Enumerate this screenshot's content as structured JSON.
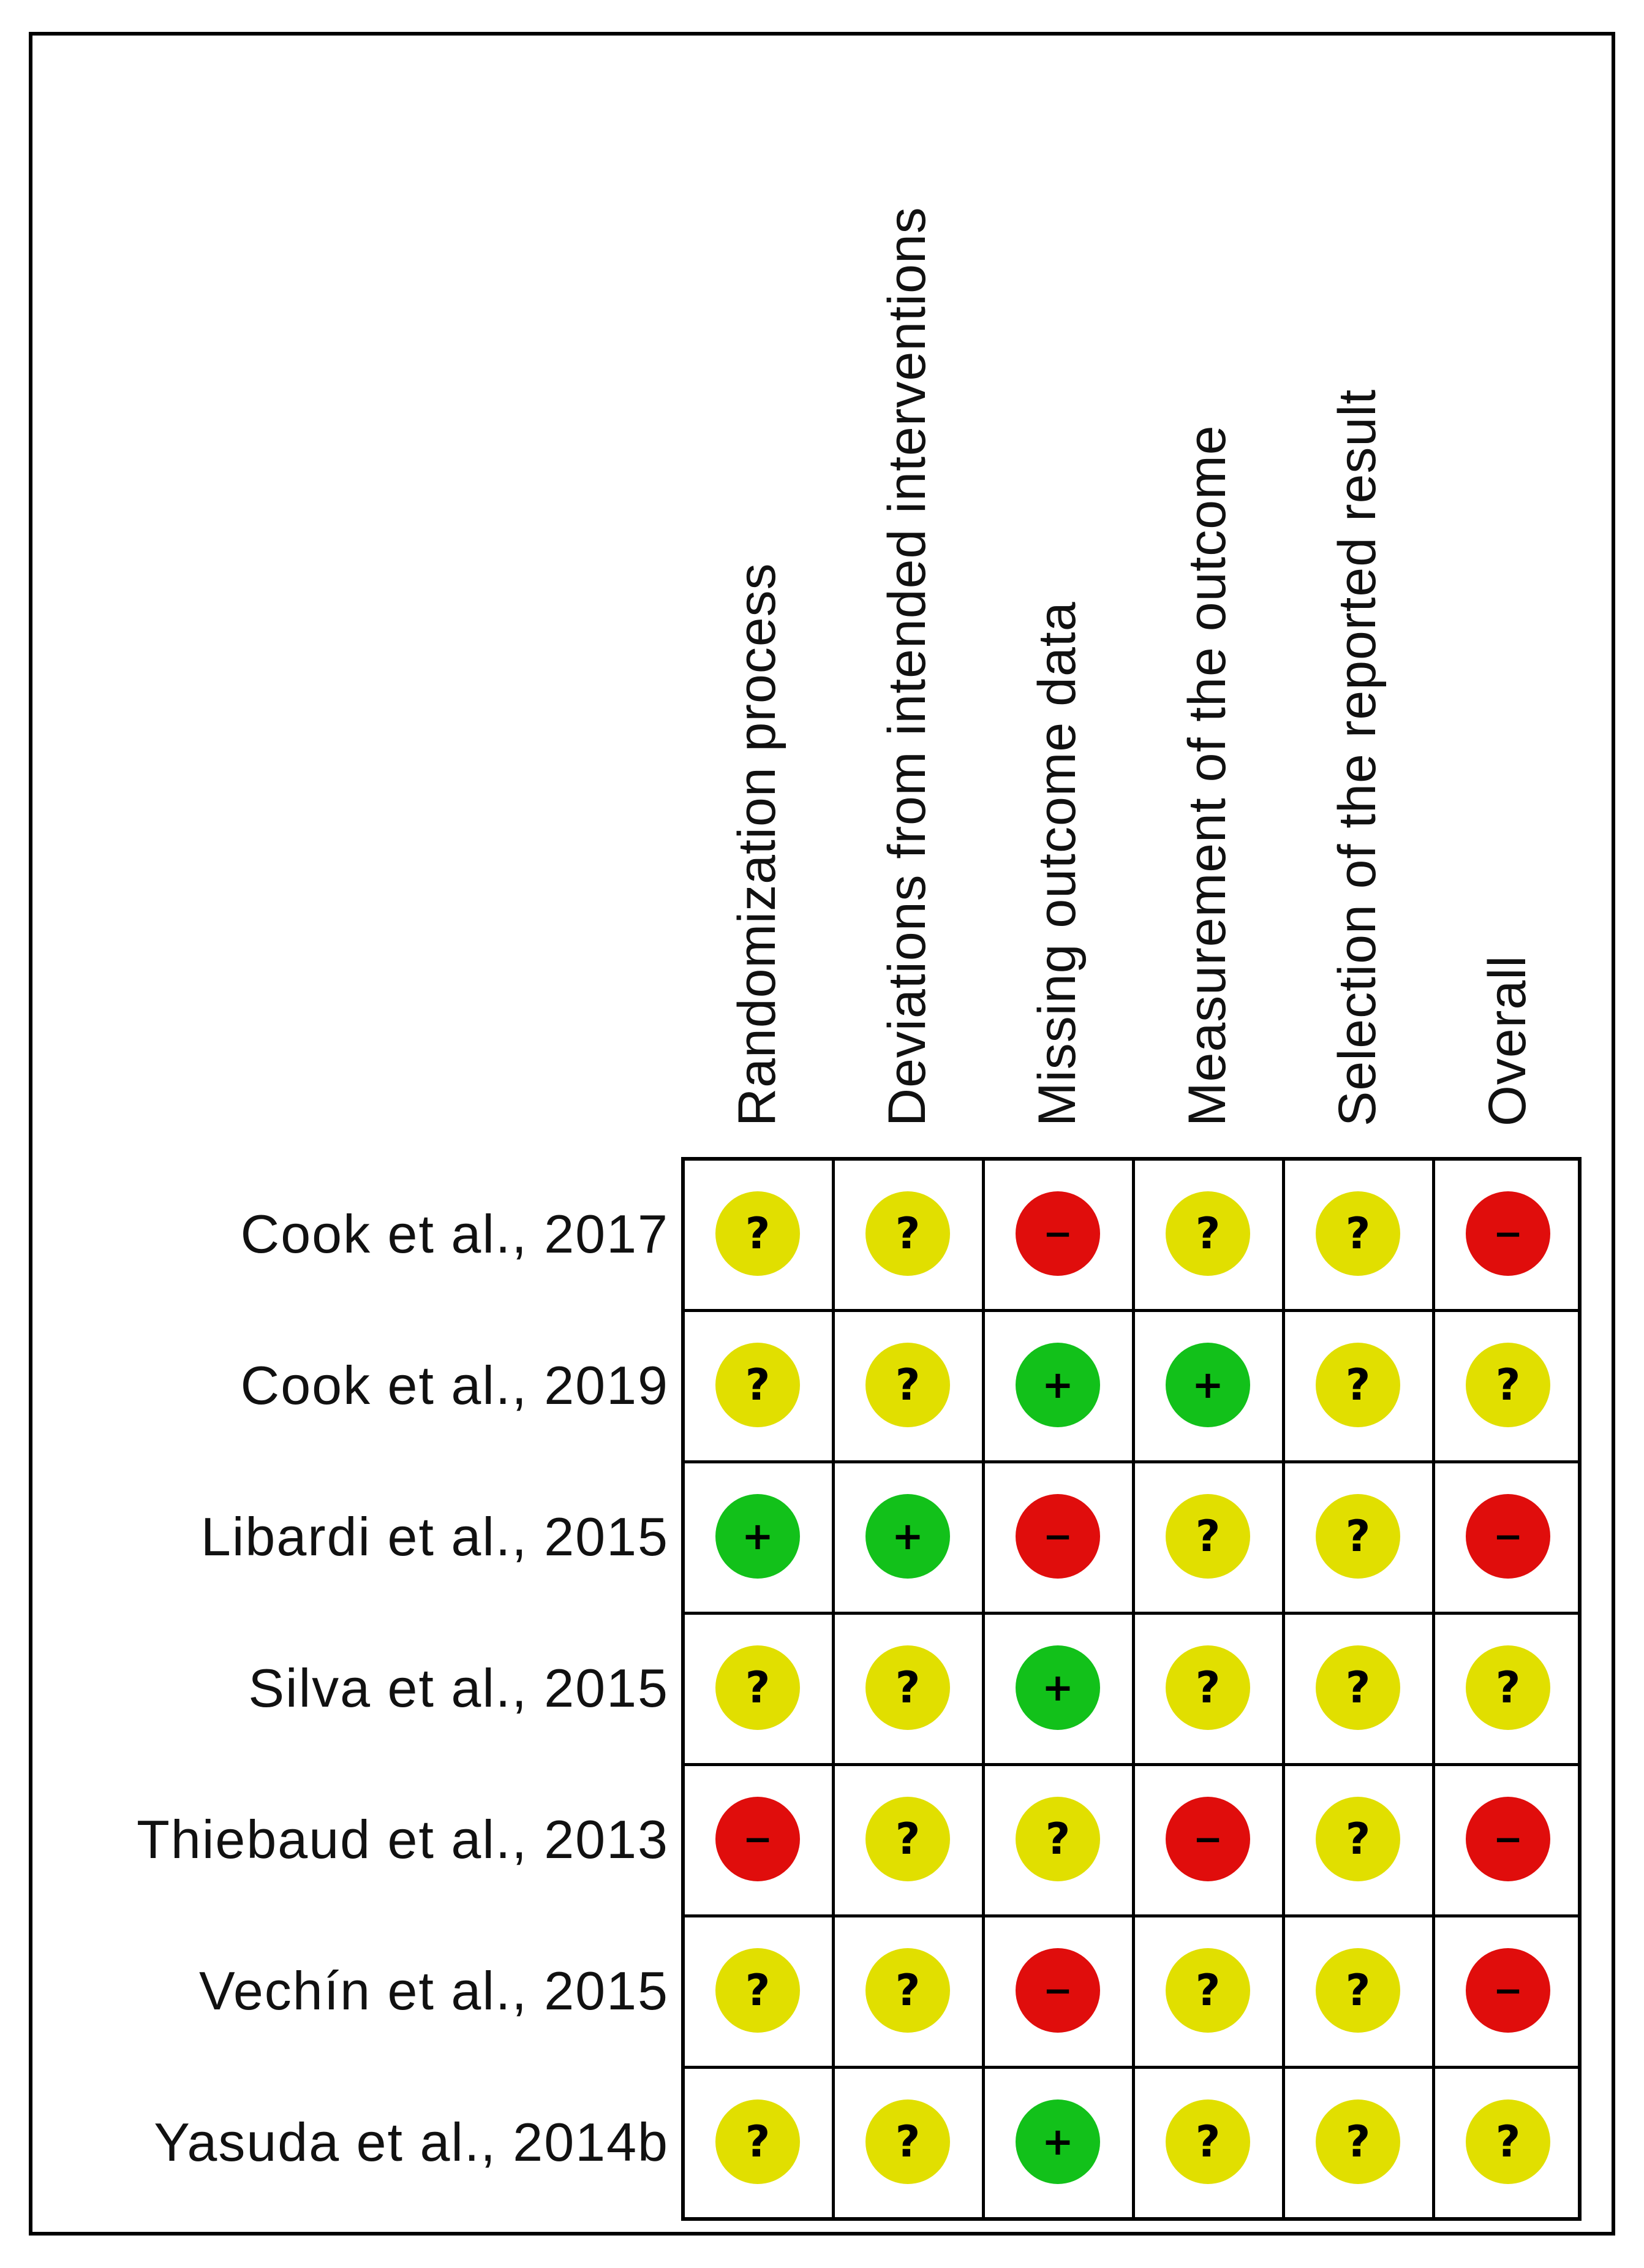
{
  "domains": [
    "Randomization process",
    "Deviations from intended interventions",
    "Missing outcome data",
    "Measurement of the outcome",
    "Selection of the reported result",
    "Overall"
  ],
  "judgement_colors": {
    "low": "#12c11a",
    "unclear": "#e1df00",
    "high": "#e00d0c"
  },
  "judgement_symbols": {
    "low": "+",
    "unclear": "?",
    "high": "−"
  },
  "studies": [
    {
      "label": "Cook et al., 2017",
      "ratings": [
        "unclear",
        "unclear",
        "high",
        "unclear",
        "unclear",
        "high"
      ]
    },
    {
      "label": "Cook et al., 2019",
      "ratings": [
        "unclear",
        "unclear",
        "low",
        "low",
        "unclear",
        "unclear"
      ]
    },
    {
      "label": "Libardi et al., 2015",
      "ratings": [
        "low",
        "low",
        "high",
        "unclear",
        "unclear",
        "high"
      ]
    },
    {
      "label": "Silva et al., 2015",
      "ratings": [
        "unclear",
        "unclear",
        "low",
        "unclear",
        "unclear",
        "unclear"
      ]
    },
    {
      "label": "Thiebaud et al., 2013",
      "ratings": [
        "high",
        "unclear",
        "unclear",
        "high",
        "unclear",
        "high"
      ]
    },
    {
      "label": "Vechín et al., 2015",
      "ratings": [
        "unclear",
        "unclear",
        "high",
        "unclear",
        "unclear",
        "high"
      ]
    },
    {
      "label": "Yasuda et al., 2014b",
      "ratings": [
        "unclear",
        "unclear",
        "low",
        "unclear",
        "unclear",
        "unclear"
      ]
    }
  ]
}
